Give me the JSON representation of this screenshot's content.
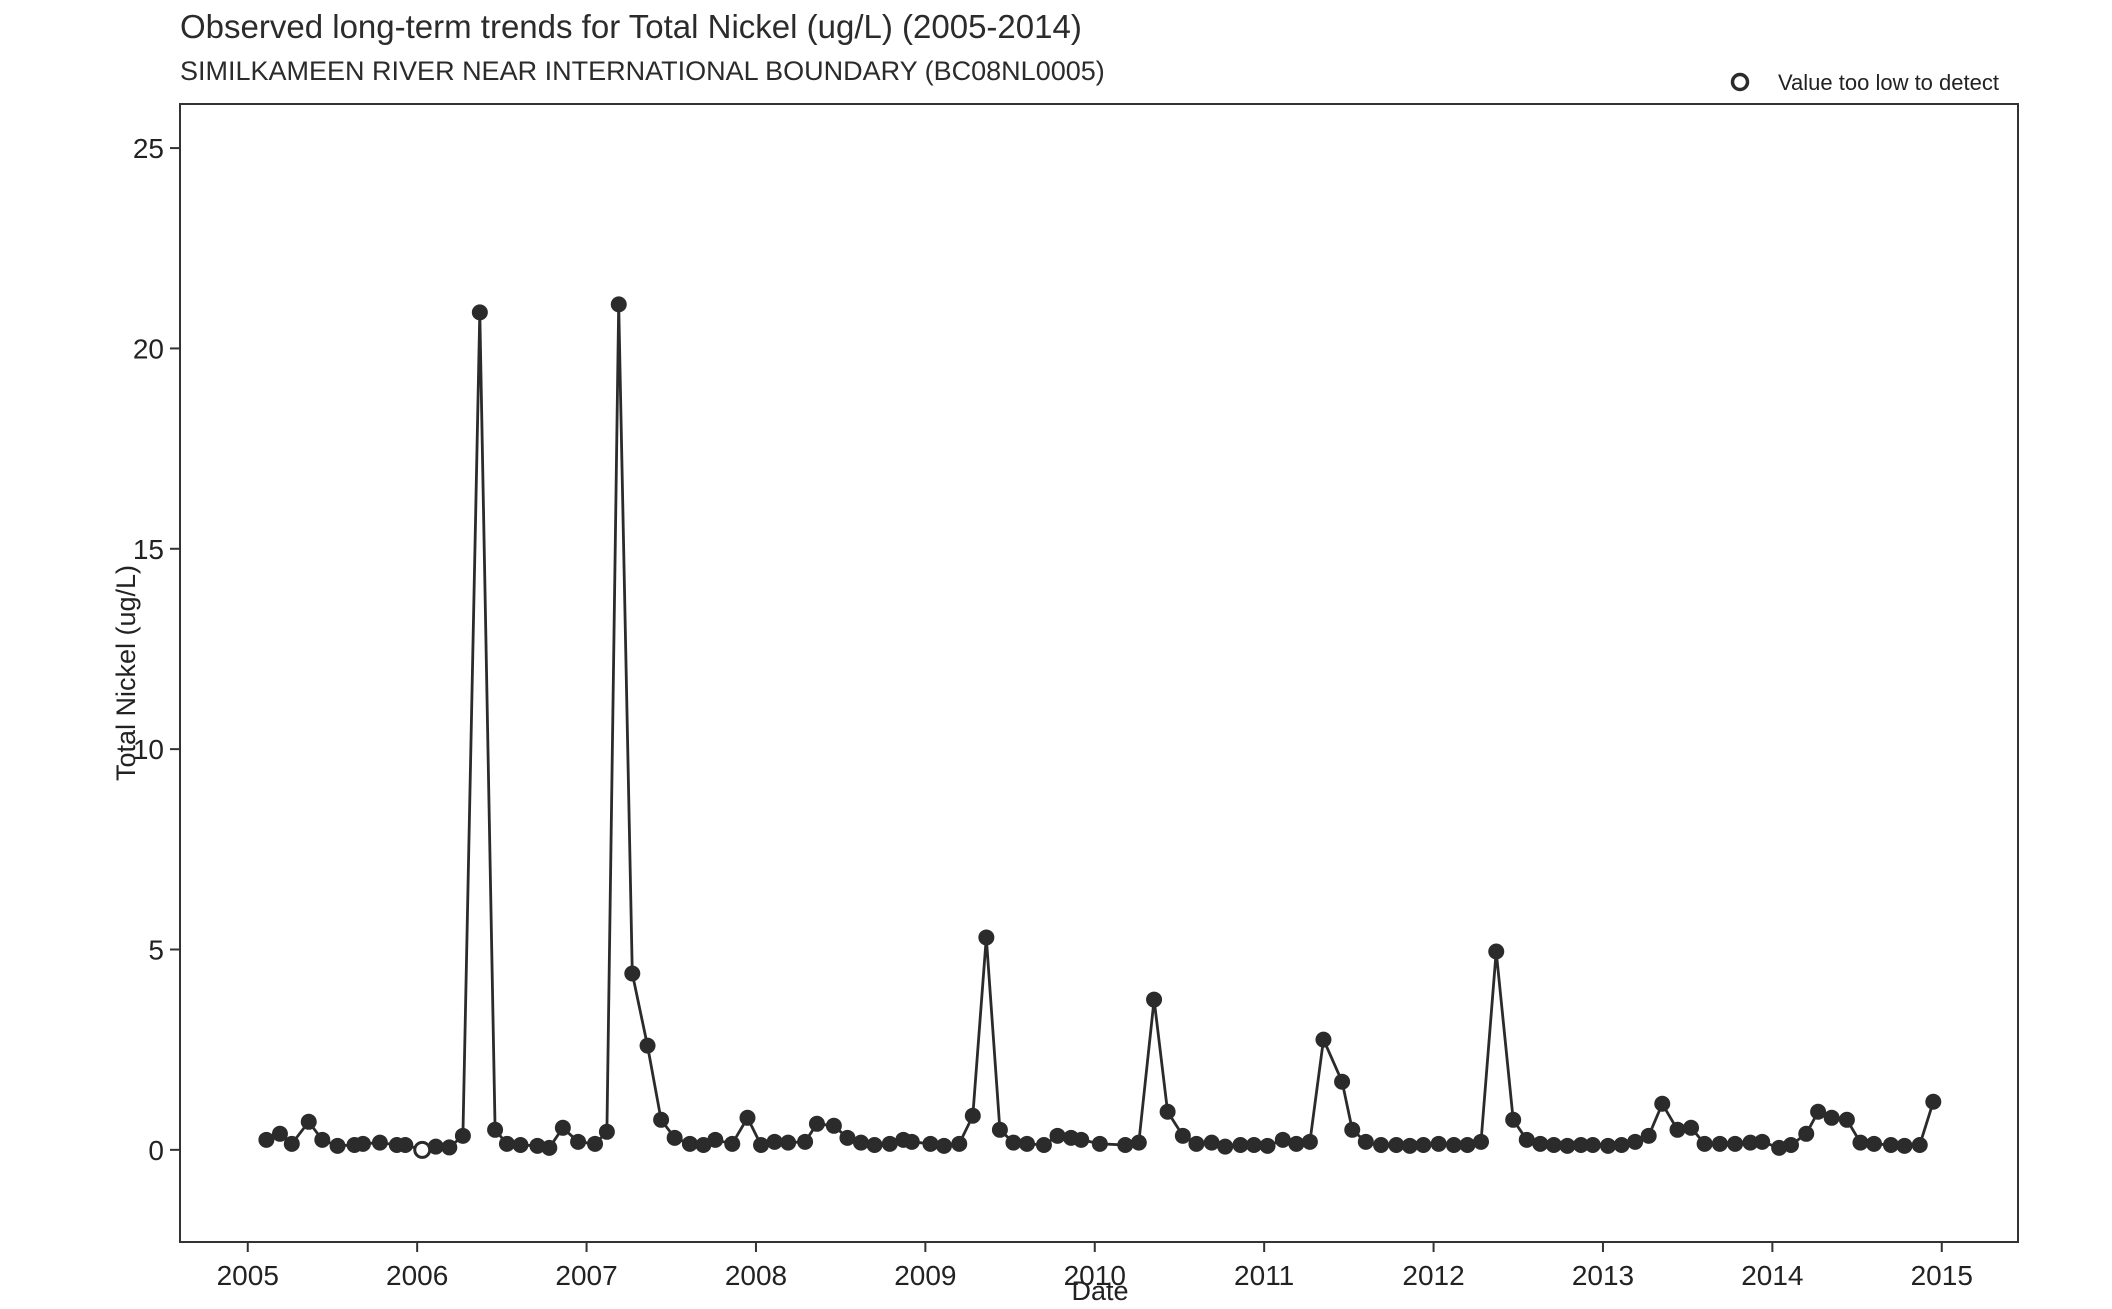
{
  "chart_data": {
    "type": "line",
    "title": "Observed long-term trends for Total Nickel (ug/L) (2005-2014)",
    "subtitle": "SIMILKAMEEN RIVER NEAR INTERNATIONAL BOUNDARY (BC08NL0005)",
    "xlabel": "Date",
    "ylabel": "Total Nickel (ug/L)",
    "xlim": [
      2004.6,
      2015.45
    ],
    "ylim": [
      -2.3,
      26.1
    ],
    "x_ticks": [
      2005,
      2006,
      2007,
      2008,
      2009,
      2010,
      2011,
      2012,
      2013,
      2014,
      2015
    ],
    "y_ticks": [
      0,
      5,
      10,
      15,
      20,
      25
    ],
    "grid": false,
    "legend": {
      "position": "top-right",
      "entries": [
        {
          "label": "Value too low to detect",
          "marker": "open-circle"
        }
      ]
    },
    "colors": {
      "line": "#2b2b2b",
      "marker": "#2b2b2b"
    },
    "series": [
      {
        "x": [
          2005.11,
          2005.19,
          2005.26,
          2005.36,
          2005.44,
          2005.53,
          2005.63,
          2005.68,
          2005.78,
          2005.88,
          2005.93,
          2006.03,
          2006.11,
          2006.19,
          2006.27,
          2006.37,
          2006.46,
          2006.53,
          2006.61,
          2006.71,
          2006.78,
          2006.86,
          2006.95,
          2007.05,
          2007.12,
          2007.19,
          2007.27,
          2007.36,
          2007.44,
          2007.52,
          2007.61,
          2007.69,
          2007.76,
          2007.86,
          2007.95,
          2008.03,
          2008.11,
          2008.19,
          2008.29,
          2008.36,
          2008.46,
          2008.54,
          2008.62,
          2008.7,
          2008.79,
          2008.87,
          2008.92,
          2009.03,
          2009.11,
          2009.2,
          2009.28,
          2009.36,
          2009.44,
          2009.52,
          2009.6,
          2009.7,
          2009.78,
          2009.86,
          2009.92,
          2010.03,
          2010.18,
          2010.26,
          2010.35,
          2010.43,
          2010.52,
          2010.6,
          2010.69,
          2010.77,
          2010.86,
          2010.94,
          2011.02,
          2011.11,
          2011.19,
          2011.27,
          2011.35,
          2011.46,
          2011.52,
          2011.6,
          2011.69,
          2011.78,
          2011.86,
          2011.94,
          2012.03,
          2012.12,
          2012.2,
          2012.28,
          2012.37,
          2012.47,
          2012.55,
          2012.63,
          2012.71,
          2012.79,
          2012.87,
          2012.94,
          2013.03,
          2013.11,
          2013.19,
          2013.27,
          2013.35,
          2013.44,
          2013.52,
          2013.6,
          2013.69,
          2013.78,
          2013.87,
          2013.94,
          2014.04,
          2014.11,
          2014.2,
          2014.27,
          2014.35,
          2014.44,
          2014.52,
          2014.6,
          2014.7,
          2014.78,
          2014.87,
          2014.95
        ],
        "y": [
          0.25,
          0.4,
          0.15,
          0.7,
          0.25,
          0.1,
          0.12,
          0.15,
          0.18,
          0.12,
          0.12,
          0.0,
          0.08,
          0.06,
          0.35,
          20.9,
          0.5,
          0.15,
          0.12,
          0.1,
          0.05,
          0.55,
          0.2,
          0.15,
          0.45,
          21.1,
          4.4,
          2.6,
          0.75,
          0.3,
          0.15,
          0.12,
          0.25,
          0.15,
          0.8,
          0.12,
          0.2,
          0.18,
          0.2,
          0.65,
          0.6,
          0.3,
          0.18,
          0.12,
          0.15,
          0.25,
          0.2,
          0.15,
          0.1,
          0.15,
          0.85,
          5.3,
          0.5,
          0.18,
          0.15,
          0.12,
          0.35,
          0.3,
          0.25,
          0.15,
          0.12,
          0.18,
          3.75,
          0.95,
          0.35,
          0.15,
          0.18,
          0.08,
          0.12,
          0.12,
          0.1,
          0.25,
          0.15,
          0.2,
          2.75,
          1.7,
          0.5,
          0.2,
          0.12,
          0.12,
          0.1,
          0.12,
          0.15,
          0.12,
          0.12,
          0.2,
          4.95,
          0.75,
          0.25,
          0.15,
          0.12,
          0.1,
          0.12,
          0.12,
          0.1,
          0.12,
          0.2,
          0.35,
          1.15,
          0.5,
          0.55,
          0.15,
          0.15,
          0.15,
          0.18,
          0.2,
          0.05,
          0.12,
          0.4,
          0.95,
          0.8,
          0.75,
          0.18,
          0.15,
          0.12,
          0.1,
          0.12,
          1.2
        ],
        "below_detection": [
          false,
          false,
          false,
          false,
          false,
          false,
          false,
          false,
          false,
          false,
          false,
          true,
          false,
          false,
          false,
          false,
          false,
          false,
          false,
          false,
          false,
          false,
          false,
          false,
          false,
          false,
          false,
          false,
          false,
          false,
          false,
          false,
          false,
          false,
          false,
          false,
          false,
          false,
          false,
          false,
          false,
          false,
          false,
          false,
          false,
          false,
          false,
          false,
          false,
          false,
          false,
          false,
          false,
          false,
          false,
          false,
          false,
          false,
          false,
          false,
          false,
          false,
          false,
          false,
          false,
          false,
          false,
          false,
          false,
          false,
          false,
          false,
          false,
          false,
          false,
          false,
          false,
          false,
          false,
          false,
          false,
          false,
          false,
          false,
          false,
          false,
          false,
          false,
          false,
          false,
          false,
          false,
          false,
          false,
          false,
          false,
          false,
          false,
          false,
          false,
          false,
          false,
          false,
          false,
          false,
          false,
          false,
          false,
          false,
          false,
          false,
          false,
          false,
          false,
          false,
          false,
          false,
          false
        ]
      }
    ]
  }
}
